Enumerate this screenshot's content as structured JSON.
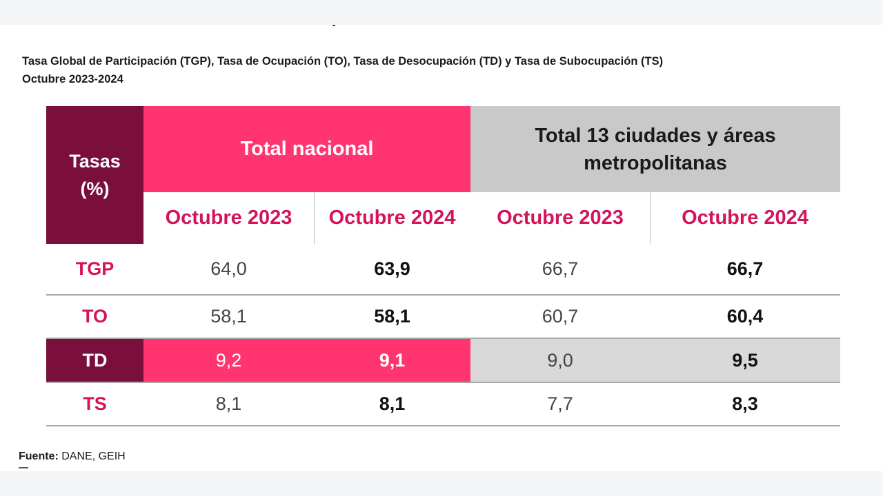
{
  "title": {
    "line1": "Tasa Global de Participación (TGP), Tasa de Ocupación (TO), Tasa de Desocupación (TD) y Tasa de Subocupación (TS)",
    "line2": "Octubre 2023-2024"
  },
  "table": {
    "corner_line1": "Tasas",
    "corner_line2": "(%)",
    "group_nacional": "Total nacional",
    "group_13_line1": "Total 13 ciudades y áreas",
    "group_13_line2": "metropolitanas",
    "periods": [
      "Octubre 2023",
      "Octubre 2024",
      "Octubre 2023",
      "Octubre 2024"
    ],
    "rows": [
      {
        "label": "TGP",
        "values": [
          "64,0",
          "63,9",
          "66,7",
          "66,7"
        ]
      },
      {
        "label": "TO",
        "values": [
          "58,1",
          "58,1",
          "60,7",
          "60,4"
        ]
      },
      {
        "label": "TD",
        "values": [
          "9,2",
          "9,1",
          "9,0",
          "9,5"
        ]
      },
      {
        "label": "TS",
        "values": [
          "8,1",
          "8,1",
          "7,7",
          "8,3"
        ]
      }
    ]
  },
  "source": {
    "label": "Fuente:",
    "text": "DANE, GEIH"
  },
  "colors": {
    "maroon": "#7a0f3c",
    "pink": "#ff3470",
    "gray": "#c9c9c9",
    "accent_text": "#d4145a"
  }
}
